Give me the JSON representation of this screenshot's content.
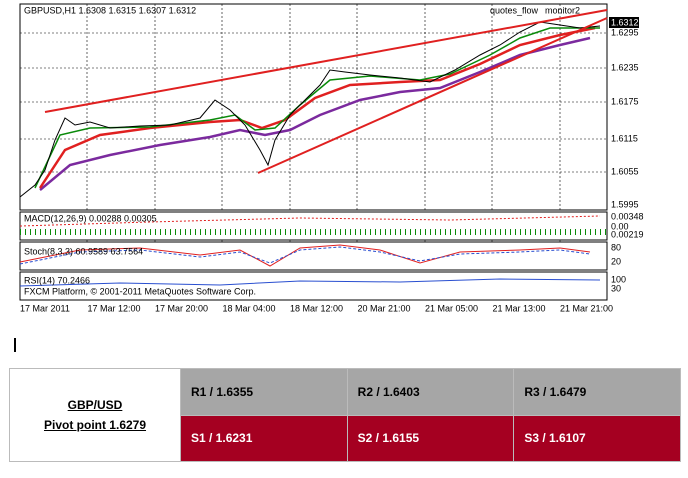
{
  "chart_window": {
    "header": "GBPUSD,H1  1.6308 1.6315 1.6307 1.6312",
    "indicator_names": [
      "quotes_flow",
      "monitor2"
    ],
    "price_current": "1.6312",
    "price_axis": [
      "1.6295",
      "1.6235",
      "1.6175",
      "1.6115",
      "1.6055",
      "1.5995"
    ],
    "macd": {
      "label": "MACD(12,26,9) 0.00288 0.00305",
      "axis": [
        "0.00348",
        "0.00",
        "0.00219"
      ]
    },
    "stoch": {
      "label": "Stoch(8,3,3) 60.9589 63.7564",
      "axis": [
        "80",
        "20"
      ]
    },
    "rsi": {
      "label": "RSI(14) 70.2466",
      "axis": [
        "100",
        "30"
      ]
    },
    "copyright": "FXCM Platform, © 2001-2011 MetaQuotes Software Corp.",
    "time_axis": [
      "17 Mar 2011",
      "17 Mar 12:00",
      "17 Mar 20:00",
      "18 Mar 04:00",
      "18 Mar 12:00",
      "20 Mar 21:00",
      "21 Mar 05:00",
      "21 Mar 13:00",
      "21 Mar 21:00"
    ]
  },
  "table": {
    "pair": "GBP/USD",
    "pivot": "Pivot point 1.6279",
    "resistance": [
      "R1 / 1.6355",
      "R2 / 1.6403",
      "R3 / 1.6479"
    ],
    "support": [
      "S1 / 1.6231",
      "S2 / 1.6155",
      "S3 / 1.6107"
    ]
  }
}
